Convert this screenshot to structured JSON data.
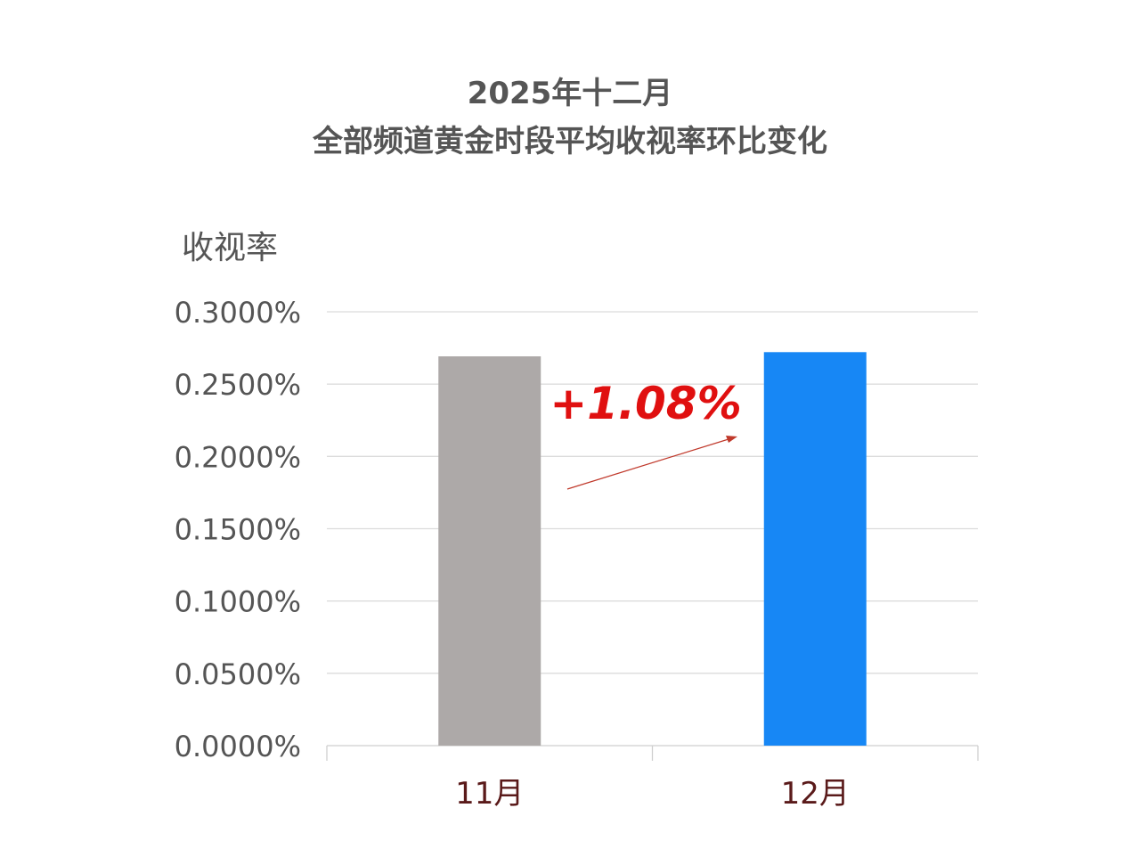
{
  "chart_data": {
    "type": "bar",
    "title": "2025年十二月",
    "subtitle": "全部频道黄金时段平均收视率环比变化",
    "ylabel": "收视率",
    "xlabel": "",
    "categories": [
      "11月",
      "12月"
    ],
    "values": [
      0.2692,
      0.2721
    ],
    "value_unit": "%",
    "colors": [
      "#ada9a8",
      "#1787f5"
    ],
    "ylim": [
      0,
      0.3
    ],
    "yticks": [
      "0.0000%",
      "0.0500%",
      "0.1000%",
      "0.1500%",
      "0.2000%",
      "0.2500%",
      "0.3000%"
    ],
    "grid": true,
    "annotation": {
      "text": "+1.08%",
      "color": "#e01010"
    }
  }
}
